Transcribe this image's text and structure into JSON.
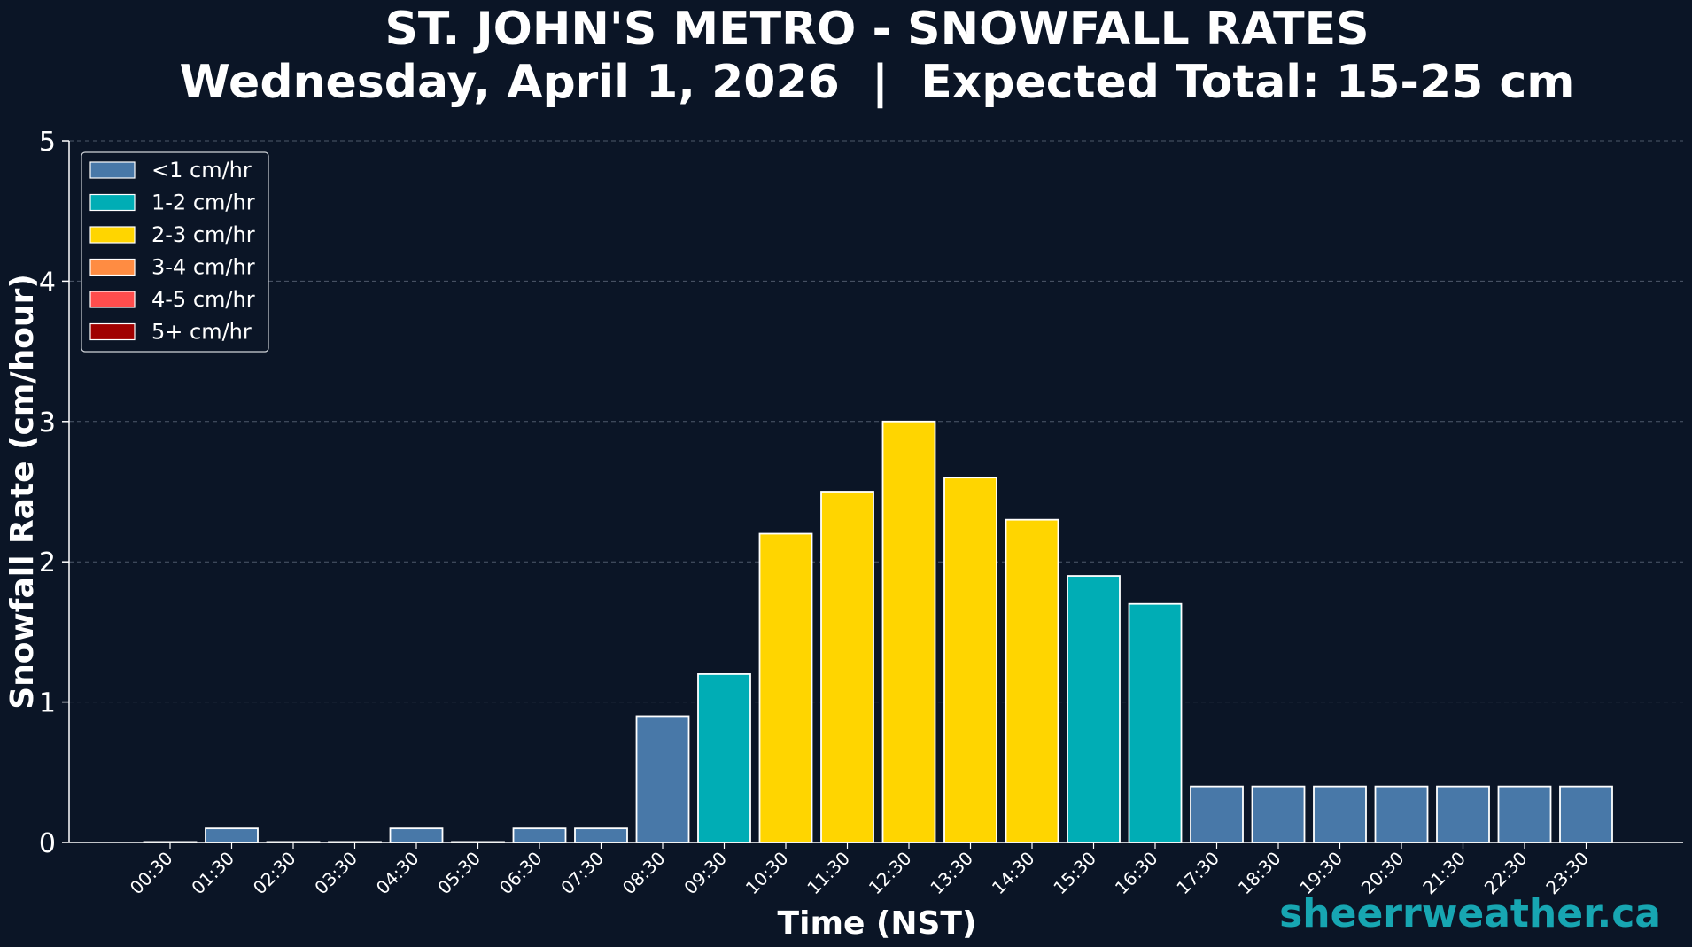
{
  "chart_data": {
    "type": "bar",
    "title": "ST. JOHN'S METRO - SNOWFALL RATES",
    "subtitle": "Wednesday, April 1, 2026  |  Expected Total: 15-25 cm",
    "xlabel": "Time (NST)",
    "ylabel": "Snowfall Rate (cm/hour)",
    "ylim": [
      0,
      5
    ],
    "yticks": [
      "0",
      "1",
      "2",
      "3",
      "4",
      "5"
    ],
    "grid": "horizontal dashed",
    "legend_position": "top-left",
    "categories": [
      "00:30",
      "01:30",
      "02:30",
      "03:30",
      "04:30",
      "05:30",
      "06:30",
      "07:30",
      "08:30",
      "09:30",
      "10:30",
      "11:30",
      "12:30",
      "13:30",
      "14:30",
      "15:30",
      "16:30",
      "17:30",
      "18:30",
      "19:30",
      "20:30",
      "21:30",
      "22:30",
      "23:30"
    ],
    "values": [
      0.0,
      0.1,
      0.0,
      0.0,
      0.1,
      0.0,
      0.1,
      0.1,
      0.9,
      1.2,
      2.2,
      2.5,
      3.0,
      2.6,
      2.3,
      1.9,
      1.7,
      0.4,
      0.4,
      0.4,
      0.4,
      0.4,
      0.4,
      0.4
    ],
    "rate_classes": [
      {
        "label": "<1 cm/hr",
        "color": "#4878a8"
      },
      {
        "label": "1-2 cm/hr",
        "color": "#00adb5"
      },
      {
        "label": "2-3 cm/hr",
        "color": "#ffd500"
      },
      {
        "label": "3-4 cm/hr",
        "color": "#ff8c42"
      },
      {
        "label": "4-5 cm/hr",
        "color": "#ff4d4d"
      },
      {
        "label": "5+ cm/hr",
        "color": "#a00000"
      }
    ]
  },
  "watermark": "sheerrweather.ca",
  "colors": {
    "background": "#0b1526",
    "bar_edge": "#ffffff",
    "grid": "#5a6678",
    "watermark": "#17a6b2"
  }
}
